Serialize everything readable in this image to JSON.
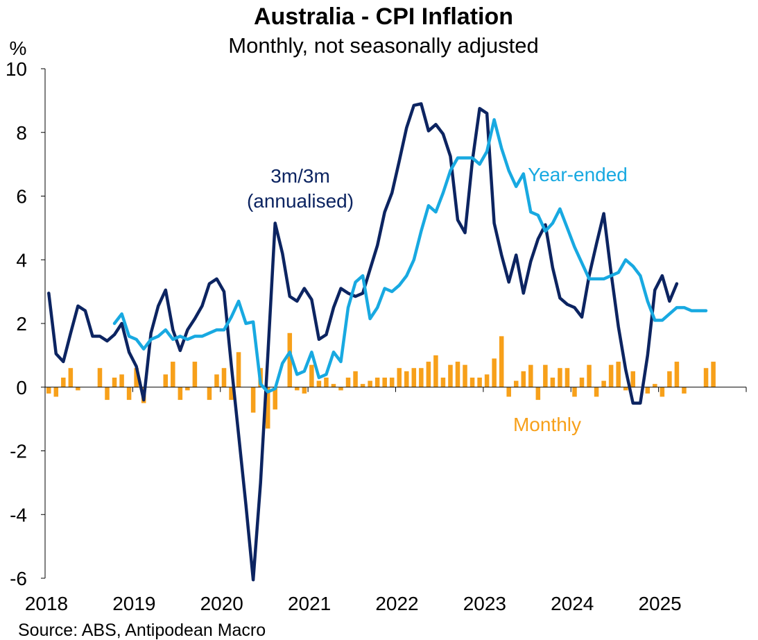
{
  "chart_data": {
    "type": "line+bar",
    "title": "Australia - CPI Inflation",
    "subtitle": "Monthly, not seasonally adjusted",
    "ylabel": "%",
    "ylim": [
      -6,
      10
    ],
    "yticks": [
      "10",
      "8",
      "6",
      "4",
      "2",
      "0",
      "-2",
      "-4",
      "-6"
    ],
    "ytick_values": [
      10,
      8,
      6,
      4,
      2,
      0,
      -2,
      -4,
      -6
    ],
    "xlim": [
      2018.0,
      2026.0
    ],
    "xticks": [
      "2018",
      "2019",
      "2020",
      "2021",
      "2022",
      "2023",
      "2024",
      "2025"
    ],
    "xtick_values": [
      2018,
      2019,
      2020,
      2021,
      2022,
      2023,
      2024,
      2025
    ],
    "source": "Source: ABS, Antipodean Macro",
    "colors": {
      "monthly": "#F7A01A",
      "three_month": "#0C2461",
      "year_ended": "#18A9E1",
      "axis": "#000000"
    },
    "annotations": {
      "three_month_line1": "3m/3m",
      "three_month_line2": "(annualised)",
      "year_ended": "Year-ended",
      "monthly": "Monthly"
    },
    "series": [
      {
        "name": "Monthly",
        "type": "bar",
        "start": 2018.0,
        "step": 0.08333,
        "values": [
          -0.2,
          -0.3,
          0.3,
          0.6,
          -0.1,
          0.0,
          0.0,
          0.6,
          -0.4,
          0.3,
          0.4,
          -0.4,
          0.6,
          -0.5,
          0.0,
          0.0,
          0.4,
          0.8,
          -0.4,
          -0.1,
          0.8,
          0.0,
          -0.4,
          0.4,
          0.6,
          -0.4,
          1.1,
          0.0,
          -0.8,
          0.6,
          -1.3,
          -0.7,
          0.0,
          1.7,
          -0.1,
          -0.2,
          0.7,
          0.2,
          0.3,
          0.1,
          -0.1,
          0.3,
          0.5,
          0.1,
          0.2,
          0.3,
          0.3,
          0.3,
          0.6,
          0.5,
          0.6,
          0.6,
          0.8,
          1.0,
          0.3,
          0.7,
          0.8,
          0.7,
          0.3,
          0.3,
          0.4,
          0.9,
          1.6,
          -0.3,
          0.2,
          0.5,
          0.7,
          -0.4,
          0.7,
          0.3,
          0.6,
          0.6,
          -0.3,
          0.3,
          0.7,
          -0.3,
          0.2,
          0.7,
          0.8,
          -0.1,
          0.5,
          0.0,
          -0.2,
          0.1,
          -0.3,
          0.5,
          0.8,
          -0.2,
          0.0,
          0.0,
          0.6,
          0.8
        ]
      },
      {
        "name": "3m/3m (annualised)",
        "type": "line",
        "start": 2018.0,
        "step": 0.08333,
        "values": [
          2.95,
          1.05,
          0.8,
          1.7,
          2.55,
          2.4,
          1.6,
          1.6,
          1.45,
          1.65,
          2.0,
          1.1,
          0.65,
          -0.4,
          1.7,
          2.55,
          3.05,
          1.8,
          1.15,
          1.8,
          2.15,
          2.55,
          3.25,
          3.4,
          3.0,
          0.7,
          -1.5,
          -3.7,
          -6.05,
          -3.0,
          1.0,
          5.15,
          4.2,
          2.85,
          2.7,
          3.1,
          2.75,
          1.5,
          1.65,
          2.5,
          3.1,
          2.95,
          2.85,
          2.95,
          3.7,
          4.45,
          5.5,
          6.1,
          7.1,
          8.15,
          8.85,
          8.9,
          8.05,
          8.25,
          7.95,
          7.25,
          5.25,
          4.85,
          7.1,
          8.75,
          8.6,
          5.15,
          4.15,
          3.3,
          4.15,
          2.95,
          3.95,
          4.65,
          5.1,
          3.75,
          2.8,
          2.6,
          2.5,
          2.2,
          3.5,
          4.5,
          5.45,
          3.6,
          1.9,
          0.55,
          -0.5,
          -0.5,
          1.0,
          3.05,
          3.5,
          2.7,
          3.25
        ]
      },
      {
        "name": "Year-ended",
        "type": "line",
        "start": 2018.75,
        "step": 0.08333,
        "values": [
          2.0,
          2.3,
          1.6,
          1.5,
          1.2,
          1.5,
          1.6,
          1.8,
          1.5,
          1.6,
          1.5,
          1.6,
          1.6,
          1.7,
          1.8,
          1.8,
          2.2,
          2.7,
          2.0,
          2.05,
          0.1,
          -0.15,
          -0.05,
          0.75,
          1.1,
          0.4,
          0.5,
          1.1,
          0.3,
          0.4,
          1.1,
          0.8,
          2.5,
          3.3,
          3.5,
          2.15,
          2.5,
          3.1,
          3.0,
          3.2,
          3.5,
          4.0,
          4.9,
          5.7,
          5.5,
          6.1,
          6.8,
          7.2,
          7.2,
          7.2,
          7.0,
          7.4,
          8.4,
          7.5,
          6.8,
          6.3,
          6.7,
          5.5,
          5.4,
          4.9,
          5.15,
          5.6,
          5.0,
          4.4,
          3.9,
          3.4,
          3.4,
          3.4,
          3.5,
          3.6,
          4.0,
          3.8,
          3.5,
          2.7,
          2.1,
          2.1,
          2.3,
          2.5,
          2.5,
          2.4,
          2.4,
          2.4
        ]
      }
    ]
  }
}
